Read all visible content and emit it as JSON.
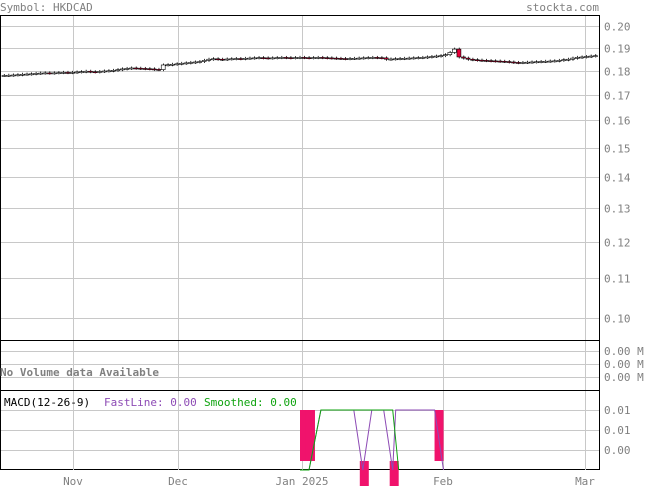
{
  "header": {
    "symbol_text": "Symbol: HKDCAD",
    "site_text": "stockta.com"
  },
  "colors": {
    "frame": "#000000",
    "grid": "#c8c8c8",
    "text": "#808080",
    "candle_up": "#ffffff",
    "candle_down": "#e8003a",
    "macd_bar": "#f0136c",
    "fast_line": "#8d4bb5",
    "smooth_line": "#0fa30f"
  },
  "chart_data": [
    {
      "type": "candlestick",
      "name": "price",
      "x_labels": [
        "Nov",
        "Dec",
        "Jan 2025",
        "Feb",
        "Mar"
      ],
      "y_ticks": [
        0.1,
        0.11,
        0.12,
        0.13,
        0.14,
        0.15,
        0.16,
        0.17,
        0.18,
        0.19,
        0.2
      ],
      "y_tick_labels": [
        "0.10",
        "0.11",
        "0.12",
        "0.13",
        "0.14",
        "0.15",
        "0.16",
        "0.17",
        "0.18",
        "0.19",
        "0.20"
      ],
      "scale": "log",
      "ylim": [
        0.095,
        0.205
      ],
      "grid": true,
      "values": [
        0.178,
        0.1781,
        0.1782,
        0.1783,
        0.1785,
        0.1786,
        0.1787,
        0.1789,
        0.179,
        0.1791,
        0.179,
        0.1791,
        0.1792,
        0.1793,
        0.1792,
        0.1793,
        0.1795,
        0.1796,
        0.1798,
        0.1796,
        0.1795,
        0.1797,
        0.1799,
        0.18,
        0.1802,
        0.1805,
        0.1808,
        0.181,
        0.1812,
        0.1811,
        0.181,
        0.1809,
        0.1808,
        0.1806,
        0.1805,
        0.1825,
        0.1826,
        0.1828,
        0.183,
        0.1832,
        0.1834,
        0.1836,
        0.1838,
        0.184,
        0.1845,
        0.185,
        0.1852,
        0.185,
        0.1849,
        0.1851,
        0.1852,
        0.1853,
        0.1852,
        0.1854,
        0.1855,
        0.1856,
        0.1857,
        0.1856,
        0.1855,
        0.1856,
        0.1857,
        0.1858,
        0.1857,
        0.1856,
        0.1857,
        0.1858,
        0.1857,
        0.1856,
        0.1857,
        0.1858,
        0.1857,
        0.1856,
        0.1855,
        0.1854,
        0.1853,
        0.1852,
        0.1853,
        0.1854,
        0.1855,
        0.1856,
        0.1857,
        0.1858,
        0.1857,
        0.1856,
        0.185,
        0.1851,
        0.1852,
        0.1853,
        0.1854,
        0.1855,
        0.1856,
        0.1857,
        0.1858,
        0.186,
        0.1862,
        0.1864,
        0.1866,
        0.187,
        0.188,
        0.1895,
        0.186,
        0.1855,
        0.185,
        0.1848,
        0.1846,
        0.1845,
        0.1844,
        0.1843,
        0.1842,
        0.1841,
        0.184,
        0.1838,
        0.1836,
        0.1835,
        0.1836,
        0.1837,
        0.1838,
        0.1839,
        0.184,
        0.1841,
        0.1842,
        0.1843,
        0.1845,
        0.1848,
        0.185,
        0.1855,
        0.1858,
        0.186,
        0.1862,
        0.1864,
        0.1866
      ]
    },
    {
      "type": "table",
      "name": "volume",
      "text": "No Volume data Available",
      "y_tick_labels": [
        "0.00 M",
        "0.00 M",
        "0.00 M"
      ]
    },
    {
      "type": "bar",
      "name": "macd",
      "label": "MACD(12-26-9)",
      "fast_label": "FastLine: 0.00",
      "smooth_label": "Smoothed: 0.00",
      "y_tick_labels": [
        "0.01",
        "0.01",
        "0.00"
      ],
      "bars": [
        {
          "x": 0.5,
          "top": 1.0,
          "bottom": 0.15
        },
        {
          "x": 0.51,
          "top": 1.0,
          "bottom": 0.15
        },
        {
          "x": 0.6,
          "top": 0.15,
          "bottom": -0.2
        },
        {
          "x": 0.65,
          "top": 0.15,
          "bottom": -0.2
        },
        {
          "x": 0.725,
          "top": 1.0,
          "bottom": 0.15
        }
      ],
      "fast_line": [
        [
          0.5,
          0.0
        ],
        [
          0.515,
          0.0
        ],
        [
          0.535,
          1.0
        ],
        [
          0.59,
          1.0
        ],
        [
          0.605,
          0.0
        ],
        [
          0.62,
          1.0
        ],
        [
          0.64,
          1.0
        ],
        [
          0.655,
          0.0
        ],
        [
          0.66,
          1.0
        ],
        [
          0.725,
          1.0
        ],
        [
          0.74,
          0.0
        ]
      ],
      "smooth_line": [
        [
          0.5,
          0.0
        ],
        [
          0.515,
          0.0
        ],
        [
          0.535,
          1.0
        ],
        [
          0.655,
          1.0
        ],
        [
          0.665,
          0.0
        ]
      ]
    }
  ]
}
